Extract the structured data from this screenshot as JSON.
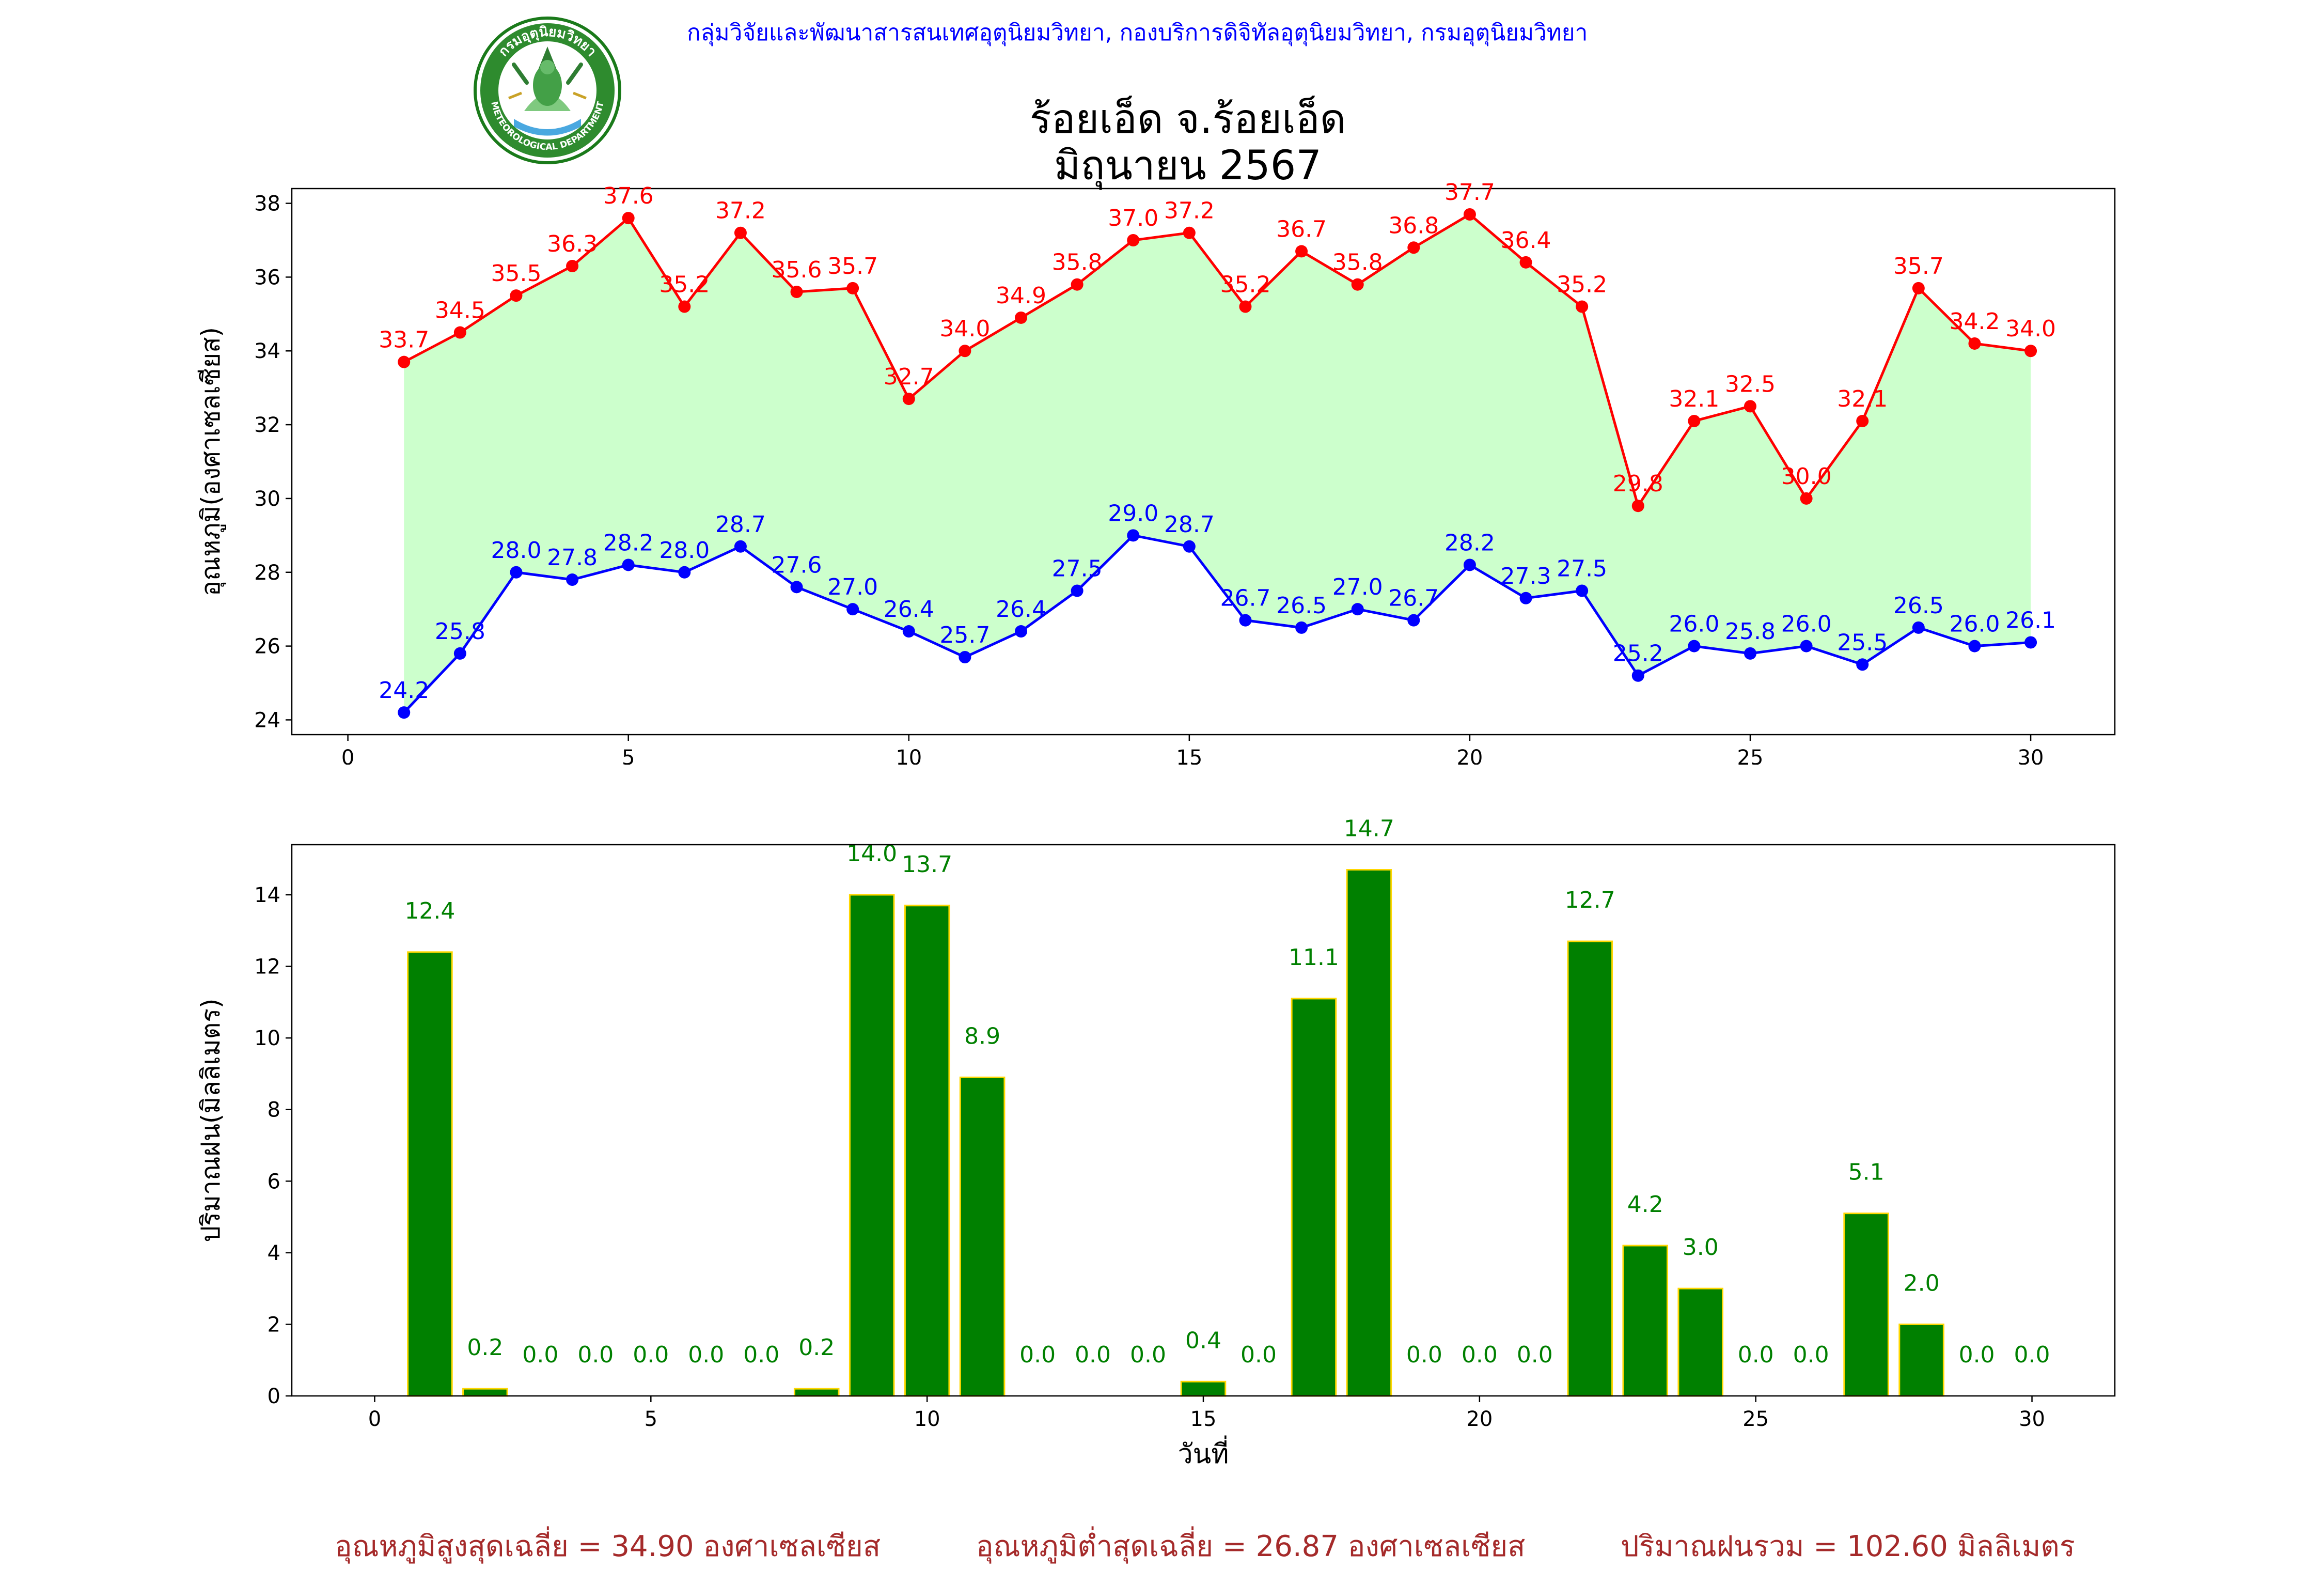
{
  "header": {
    "org_line": "กลุ่มวิจัยและพัฒนาสารสนเทศอุตุนิยมวิทยา, กองบริการดิจิทัลอุตุนิยมวิทยา, กรมอุตุนิยมวิทยา",
    "title_line1": "ร้อยเอ็ด จ.ร้อยเอ็ด",
    "title_line2": "มิถุนายน 2567",
    "seal_top_text": "กรมอุตุนิยมวิทยา",
    "seal_bottom_text": "METEOROLOGICAL DEPARTMENT"
  },
  "footer": {
    "max_avg": "อุณหภูมิสูงสุดเฉลี่ย = 34.90 องศาเซลเซียส",
    "min_avg": "อุณหภูมิต่ำสุดเฉลี่ย = 26.87 องศาเซลเซียส",
    "rain_total": "ปริมาณฝนรวม = 102.60 มิลลิเมตร"
  },
  "colors": {
    "max_line": "#ff0000",
    "min_line": "#0000ff",
    "fill": "#ccffcc",
    "bar": "#008000",
    "bar_edge": "#ffd700",
    "bar_label": "#008000",
    "footer": "#a52a2a",
    "header": "#0000ff"
  },
  "chart_data": [
    {
      "type": "line",
      "ylabel": "อุณหภูมิ(องศาเซลเซียส)",
      "xlabel": "",
      "xlim": [
        -1,
        31.5
      ],
      "ylim": [
        23.6,
        38.4
      ],
      "xticks": [
        0,
        5,
        10,
        15,
        20,
        25,
        30
      ],
      "yticks": [
        24,
        26,
        28,
        30,
        32,
        34,
        36,
        38
      ],
      "x": [
        1,
        2,
        3,
        4,
        5,
        6,
        7,
        8,
        9,
        10,
        11,
        12,
        13,
        14,
        15,
        16,
        17,
        18,
        19,
        20,
        21,
        22,
        23,
        24,
        25,
        26,
        27,
        28,
        29,
        30
      ],
      "series": [
        {
          "key": "max",
          "values": [
            33.7,
            34.5,
            35.5,
            36.3,
            37.6,
            35.2,
            37.2,
            35.6,
            35.7,
            32.7,
            34.0,
            34.9,
            35.8,
            37.0,
            37.2,
            35.2,
            36.7,
            35.8,
            36.8,
            37.7,
            36.4,
            35.2,
            29.8,
            32.1,
            32.5,
            30.0,
            32.1,
            35.7,
            34.2,
            34.0
          ]
        },
        {
          "key": "min",
          "values": [
            24.2,
            25.8,
            28.0,
            27.8,
            28.2,
            28.0,
            28.7,
            27.6,
            27.0,
            26.4,
            25.7,
            26.4,
            27.5,
            29.0,
            28.7,
            26.7,
            26.5,
            27.0,
            26.7,
            28.2,
            27.3,
            27.5,
            25.2,
            26.0,
            25.8,
            26.0,
            25.5,
            26.5,
            26.0,
            26.1
          ]
        }
      ],
      "grid": false,
      "fill_between": true
    },
    {
      "type": "bar",
      "ylabel": "ปริมาณฝน(มิลลิเมตร)",
      "xlabel": "วันที่",
      "xlim": [
        -1.5,
        31.5
      ],
      "ylim": [
        0,
        15.4
      ],
      "xticks": [
        0,
        5,
        10,
        15,
        20,
        25,
        30
      ],
      "yticks": [
        0,
        2,
        4,
        6,
        8,
        10,
        12,
        14
      ],
      "x": [
        1,
        2,
        3,
        4,
        5,
        6,
        7,
        8,
        9,
        10,
        11,
        12,
        13,
        14,
        15,
        16,
        17,
        18,
        19,
        20,
        21,
        22,
        23,
        24,
        25,
        26,
        27,
        28,
        29,
        30
      ],
      "values": [
        12.4,
        0.2,
        0.0,
        0.0,
        0.0,
        0.0,
        0.0,
        0.2,
        14.0,
        13.7,
        8.9,
        0.0,
        0.0,
        0.0,
        0.4,
        0.0,
        11.1,
        14.7,
        0.0,
        0.0,
        0.0,
        12.7,
        4.2,
        3.0,
        0.0,
        0.0,
        5.1,
        2.0,
        0.0,
        0.0
      ],
      "grid": false
    }
  ]
}
